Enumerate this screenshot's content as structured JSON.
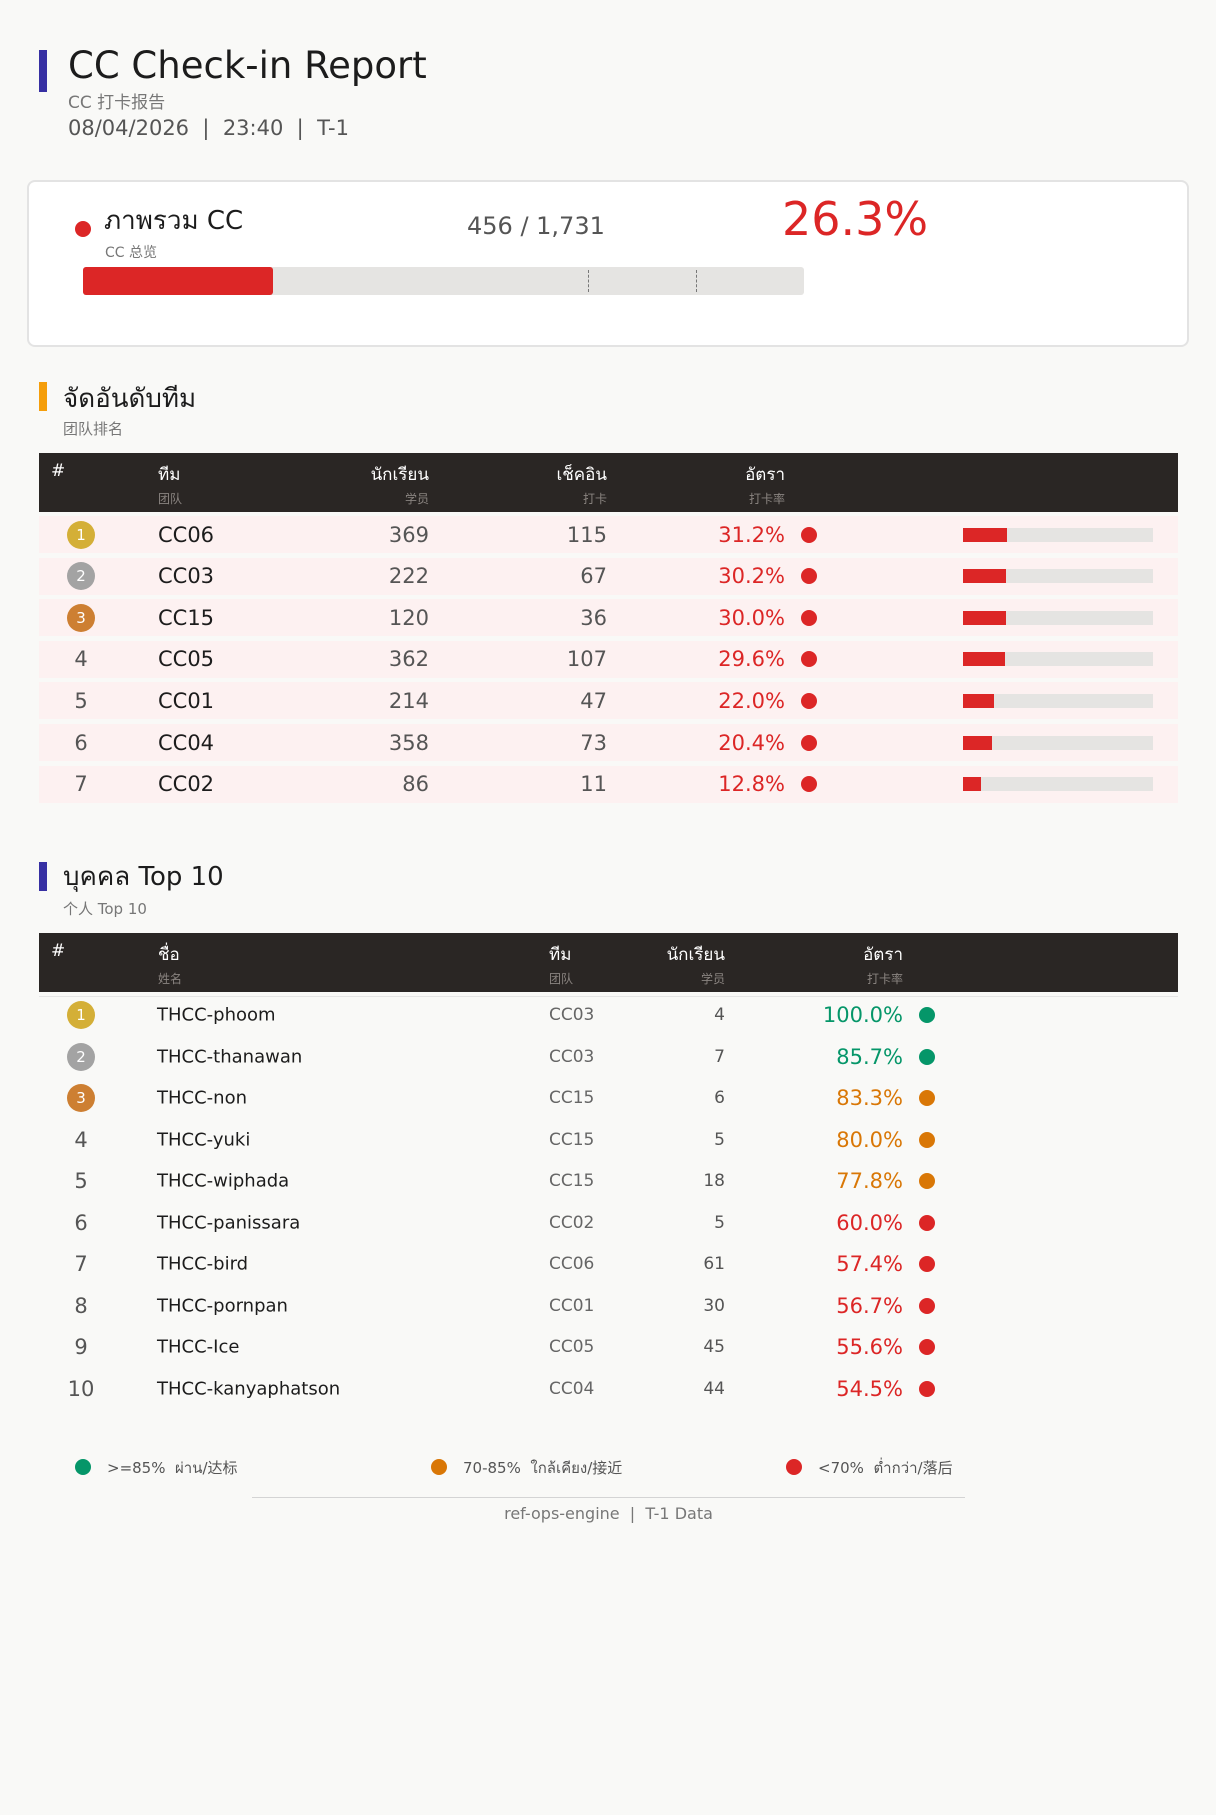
{
  "header": {
    "title": "CC Check-in Report",
    "subtitle": "CC 打卡报告",
    "meta": "08/04/2026  |  23:40  |  T-1",
    "accent": "#3730a3"
  },
  "overview": {
    "title": "ภาพรวม CC",
    "subtitle": "CC 总览",
    "count": "456 / 1,731",
    "rate": "26.3%",
    "progress": 0.263,
    "markers": [
      0.7,
      0.85
    ],
    "status_color": "#dc2626"
  },
  "teams": {
    "title": "จัดอันดับทีม",
    "subtitle": "团队排名",
    "accent": "#f59e0b",
    "columns": [
      {
        "th": "#",
        "zh": ""
      },
      {
        "th": "ทีม",
        "zh": "团队"
      },
      {
        "th": "นักเรียน",
        "zh": "学员"
      },
      {
        "th": "เช็คอิน",
        "zh": "打卡"
      },
      {
        "th": "อัตรา",
        "zh": "打卡率"
      }
    ],
    "rows": [
      {
        "rank": "1",
        "team": "CC06",
        "students": "369",
        "checkin": "115",
        "rate": "31.2%",
        "value": 0.312
      },
      {
        "rank": "2",
        "team": "CC03",
        "students": "222",
        "checkin": "67",
        "rate": "30.2%",
        "value": 0.302
      },
      {
        "rank": "3",
        "team": "CC15",
        "students": "120",
        "checkin": "36",
        "rate": "30.0%",
        "value": 0.3
      },
      {
        "rank": "4",
        "team": "CC05",
        "students": "362",
        "checkin": "107",
        "rate": "29.6%",
        "value": 0.296
      },
      {
        "rank": "5",
        "team": "CC01",
        "students": "214",
        "checkin": "47",
        "rate": "22.0%",
        "value": 0.22
      },
      {
        "rank": "6",
        "team": "CC04",
        "students": "358",
        "checkin": "73",
        "rate": "20.4%",
        "value": 0.204
      },
      {
        "rank": "7",
        "team": "CC02",
        "students": "86",
        "checkin": "11",
        "rate": "12.8%",
        "value": 0.128
      }
    ]
  },
  "individuals": {
    "title": "บุคคล Top 10",
    "subtitle": "个人 Top 10",
    "accent": "#3730a3",
    "columns": [
      {
        "th": "#",
        "zh": ""
      },
      {
        "th": "ชื่อ",
        "zh": "姓名"
      },
      {
        "th": "ทีม",
        "zh": "团队"
      },
      {
        "th": "นักเรียน",
        "zh": "学员"
      },
      {
        "th": "อัตรา",
        "zh": "打卡率"
      }
    ],
    "rows": [
      {
        "rank": "1",
        "name": "THCC-phoom",
        "team": "CC03",
        "students": "4",
        "rate": "100.0%",
        "status": "green"
      },
      {
        "rank": "2",
        "name": "THCC-thanawan",
        "team": "CC03",
        "students": "7",
        "rate": "85.7%",
        "status": "green"
      },
      {
        "rank": "3",
        "name": "THCC-non",
        "team": "CC15",
        "students": "6",
        "rate": "83.3%",
        "status": "orange"
      },
      {
        "rank": "4",
        "name": "THCC-yuki",
        "team": "CC15",
        "students": "5",
        "rate": "80.0%",
        "status": "orange"
      },
      {
        "rank": "5",
        "name": "THCC-wiphada",
        "team": "CC15",
        "students": "18",
        "rate": "77.8%",
        "status": "orange"
      },
      {
        "rank": "6",
        "name": "THCC-panissara",
        "team": "CC02",
        "students": "5",
        "rate": "60.0%",
        "status": "red"
      },
      {
        "rank": "7",
        "name": "THCC-bird",
        "team": "CC06",
        "students": "61",
        "rate": "57.4%",
        "status": "red"
      },
      {
        "rank": "8",
        "name": "THCC-pornpan",
        "team": "CC01",
        "students": "30",
        "rate": "56.7%",
        "status": "red"
      },
      {
        "rank": "9",
        "name": "THCC-Ice",
        "team": "CC05",
        "students": "45",
        "rate": "55.6%",
        "status": "red"
      },
      {
        "rank": "10",
        "name": "THCC-kanyaphatson",
        "team": "CC04",
        "students": "44",
        "rate": "54.5%",
        "status": "red"
      }
    ]
  },
  "legend": [
    {
      "label": ">=85%  ผ่าน/达标",
      "color": "#059669"
    },
    {
      "label": "70-85%  ใกล้เคียง/接近",
      "color": "#d97706"
    },
    {
      "label": "<70%  ต่ำกว่า/落后",
      "color": "#dc2626"
    }
  ],
  "footer": "ref-ops-engine  |  T-1 Data",
  "colors": {
    "green": "#059669",
    "orange": "#d97706",
    "red": "#dc2626",
    "gold": "#d4af37",
    "silver": "#a3a3a3",
    "bronze": "#cd7f32"
  }
}
